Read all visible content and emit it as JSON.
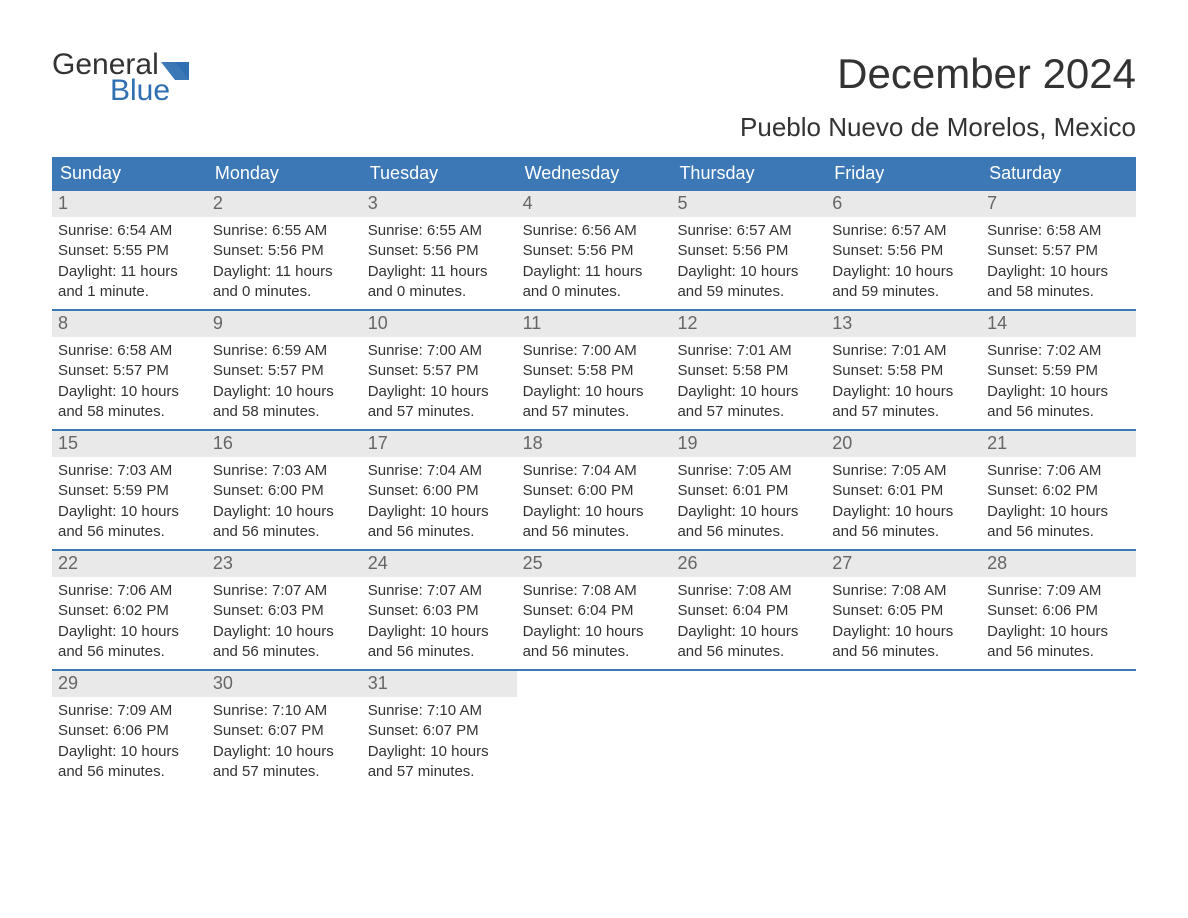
{
  "brand": {
    "line1": "General",
    "line2": "Blue",
    "color_primary": "#3b78b5",
    "color_accent": "#2f6fb2"
  },
  "title": "December 2024",
  "location": "Pueblo Nuevo de Morelos, Mexico",
  "colors": {
    "header_bg": "#3b78b5",
    "header_text": "#ffffff",
    "daynum_bg": "#e9e9e9",
    "daynum_text": "#666666",
    "body_text": "#333333",
    "week_border": "#3b78b5",
    "page_bg": "#ffffff"
  },
  "fonts": {
    "title_size_pt": 32,
    "location_size_pt": 20,
    "dow_size_pt": 14,
    "body_size_pt": 11
  },
  "days_of_week": [
    "Sunday",
    "Monday",
    "Tuesday",
    "Wednesday",
    "Thursday",
    "Friday",
    "Saturday"
  ],
  "weeks": [
    [
      {
        "n": "1",
        "sunrise": "Sunrise: 6:54 AM",
        "sunset": "Sunset: 5:55 PM",
        "daylight": "Daylight: 11 hours and 1 minute."
      },
      {
        "n": "2",
        "sunrise": "Sunrise: 6:55 AM",
        "sunset": "Sunset: 5:56 PM",
        "daylight": "Daylight: 11 hours and 0 minutes."
      },
      {
        "n": "3",
        "sunrise": "Sunrise: 6:55 AM",
        "sunset": "Sunset: 5:56 PM",
        "daylight": "Daylight: 11 hours and 0 minutes."
      },
      {
        "n": "4",
        "sunrise": "Sunrise: 6:56 AM",
        "sunset": "Sunset: 5:56 PM",
        "daylight": "Daylight: 11 hours and 0 minutes."
      },
      {
        "n": "5",
        "sunrise": "Sunrise: 6:57 AM",
        "sunset": "Sunset: 5:56 PM",
        "daylight": "Daylight: 10 hours and 59 minutes."
      },
      {
        "n": "6",
        "sunrise": "Sunrise: 6:57 AM",
        "sunset": "Sunset: 5:56 PM",
        "daylight": "Daylight: 10 hours and 59 minutes."
      },
      {
        "n": "7",
        "sunrise": "Sunrise: 6:58 AM",
        "sunset": "Sunset: 5:57 PM",
        "daylight": "Daylight: 10 hours and 58 minutes."
      }
    ],
    [
      {
        "n": "8",
        "sunrise": "Sunrise: 6:58 AM",
        "sunset": "Sunset: 5:57 PM",
        "daylight": "Daylight: 10 hours and 58 minutes."
      },
      {
        "n": "9",
        "sunrise": "Sunrise: 6:59 AM",
        "sunset": "Sunset: 5:57 PM",
        "daylight": "Daylight: 10 hours and 58 minutes."
      },
      {
        "n": "10",
        "sunrise": "Sunrise: 7:00 AM",
        "sunset": "Sunset: 5:57 PM",
        "daylight": "Daylight: 10 hours and 57 minutes."
      },
      {
        "n": "11",
        "sunrise": "Sunrise: 7:00 AM",
        "sunset": "Sunset: 5:58 PM",
        "daylight": "Daylight: 10 hours and 57 minutes."
      },
      {
        "n": "12",
        "sunrise": "Sunrise: 7:01 AM",
        "sunset": "Sunset: 5:58 PM",
        "daylight": "Daylight: 10 hours and 57 minutes."
      },
      {
        "n": "13",
        "sunrise": "Sunrise: 7:01 AM",
        "sunset": "Sunset: 5:58 PM",
        "daylight": "Daylight: 10 hours and 57 minutes."
      },
      {
        "n": "14",
        "sunrise": "Sunrise: 7:02 AM",
        "sunset": "Sunset: 5:59 PM",
        "daylight": "Daylight: 10 hours and 56 minutes."
      }
    ],
    [
      {
        "n": "15",
        "sunrise": "Sunrise: 7:03 AM",
        "sunset": "Sunset: 5:59 PM",
        "daylight": "Daylight: 10 hours and 56 minutes."
      },
      {
        "n": "16",
        "sunrise": "Sunrise: 7:03 AM",
        "sunset": "Sunset: 6:00 PM",
        "daylight": "Daylight: 10 hours and 56 minutes."
      },
      {
        "n": "17",
        "sunrise": "Sunrise: 7:04 AM",
        "sunset": "Sunset: 6:00 PM",
        "daylight": "Daylight: 10 hours and 56 minutes."
      },
      {
        "n": "18",
        "sunrise": "Sunrise: 7:04 AM",
        "sunset": "Sunset: 6:00 PM",
        "daylight": "Daylight: 10 hours and 56 minutes."
      },
      {
        "n": "19",
        "sunrise": "Sunrise: 7:05 AM",
        "sunset": "Sunset: 6:01 PM",
        "daylight": "Daylight: 10 hours and 56 minutes."
      },
      {
        "n": "20",
        "sunrise": "Sunrise: 7:05 AM",
        "sunset": "Sunset: 6:01 PM",
        "daylight": "Daylight: 10 hours and 56 minutes."
      },
      {
        "n": "21",
        "sunrise": "Sunrise: 7:06 AM",
        "sunset": "Sunset: 6:02 PM",
        "daylight": "Daylight: 10 hours and 56 minutes."
      }
    ],
    [
      {
        "n": "22",
        "sunrise": "Sunrise: 7:06 AM",
        "sunset": "Sunset: 6:02 PM",
        "daylight": "Daylight: 10 hours and 56 minutes."
      },
      {
        "n": "23",
        "sunrise": "Sunrise: 7:07 AM",
        "sunset": "Sunset: 6:03 PM",
        "daylight": "Daylight: 10 hours and 56 minutes."
      },
      {
        "n": "24",
        "sunrise": "Sunrise: 7:07 AM",
        "sunset": "Sunset: 6:03 PM",
        "daylight": "Daylight: 10 hours and 56 minutes."
      },
      {
        "n": "25",
        "sunrise": "Sunrise: 7:08 AM",
        "sunset": "Sunset: 6:04 PM",
        "daylight": "Daylight: 10 hours and 56 minutes."
      },
      {
        "n": "26",
        "sunrise": "Sunrise: 7:08 AM",
        "sunset": "Sunset: 6:04 PM",
        "daylight": "Daylight: 10 hours and 56 minutes."
      },
      {
        "n": "27",
        "sunrise": "Sunrise: 7:08 AM",
        "sunset": "Sunset: 6:05 PM",
        "daylight": "Daylight: 10 hours and 56 minutes."
      },
      {
        "n": "28",
        "sunrise": "Sunrise: 7:09 AM",
        "sunset": "Sunset: 6:06 PM",
        "daylight": "Daylight: 10 hours and 56 minutes."
      }
    ],
    [
      {
        "n": "29",
        "sunrise": "Sunrise: 7:09 AM",
        "sunset": "Sunset: 6:06 PM",
        "daylight": "Daylight: 10 hours and 56 minutes."
      },
      {
        "n": "30",
        "sunrise": "Sunrise: 7:10 AM",
        "sunset": "Sunset: 6:07 PM",
        "daylight": "Daylight: 10 hours and 57 minutes."
      },
      {
        "n": "31",
        "sunrise": "Sunrise: 7:10 AM",
        "sunset": "Sunset: 6:07 PM",
        "daylight": "Daylight: 10 hours and 57 minutes."
      },
      null,
      null,
      null,
      null
    ]
  ]
}
